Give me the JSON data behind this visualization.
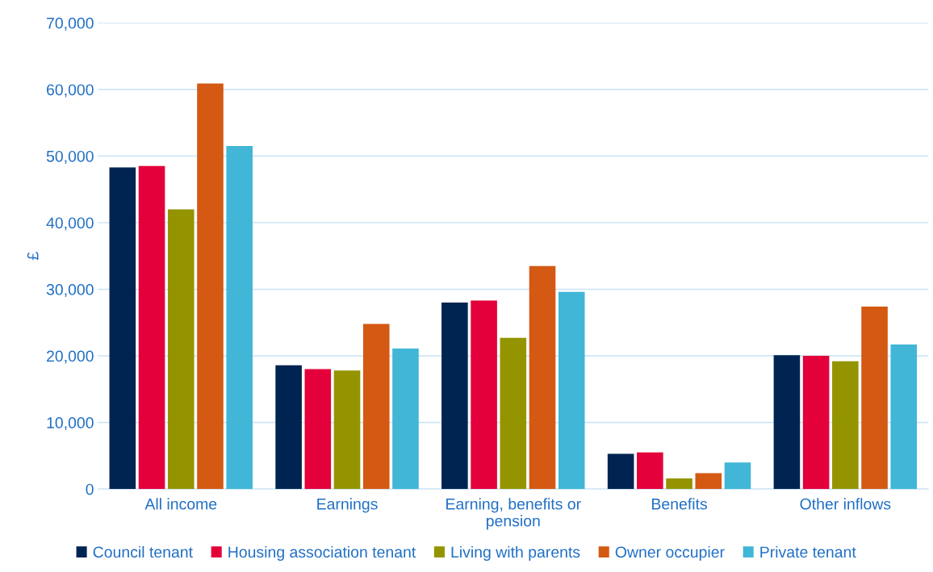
{
  "chart_data": {
    "type": "bar",
    "ylabel": "£",
    "categories": [
      "All income",
      "Earnings",
      "Earning, benefits or\npension",
      "Benefits",
      "Other inflows"
    ],
    "series": [
      {
        "name": "Council tenant",
        "color": "#002451",
        "values": [
          48300,
          18600,
          28000,
          5300,
          20100
        ]
      },
      {
        "name": "Housing association tenant",
        "color": "#e4003b",
        "values": [
          48500,
          18000,
          28300,
          5500,
          20000
        ]
      },
      {
        "name": "Living with parents",
        "color": "#949400",
        "values": [
          42000,
          17800,
          22700,
          1600,
          19200
        ]
      },
      {
        "name": "Owner occupier",
        "color": "#d45913",
        "values": [
          60900,
          24800,
          33500,
          2400,
          27400
        ]
      },
      {
        "name": "Private tenant",
        "color": "#41b6d7",
        "values": [
          51500,
          21100,
          29600,
          4000,
          21700
        ]
      }
    ],
    "ylim": [
      0,
      70000
    ],
    "yticks": [
      {
        "value": 0,
        "label": "0"
      },
      {
        "value": 10000,
        "label": "10,000"
      },
      {
        "value": 20000,
        "label": "20,000"
      },
      {
        "value": 30000,
        "label": "30,000"
      },
      {
        "value": 40000,
        "label": "40,000"
      },
      {
        "value": 50000,
        "label": "50,000"
      },
      {
        "value": 60000,
        "label": "60,000"
      },
      {
        "value": 70000,
        "label": "70,000"
      }
    ],
    "grid": "y",
    "legend": "bottom"
  }
}
